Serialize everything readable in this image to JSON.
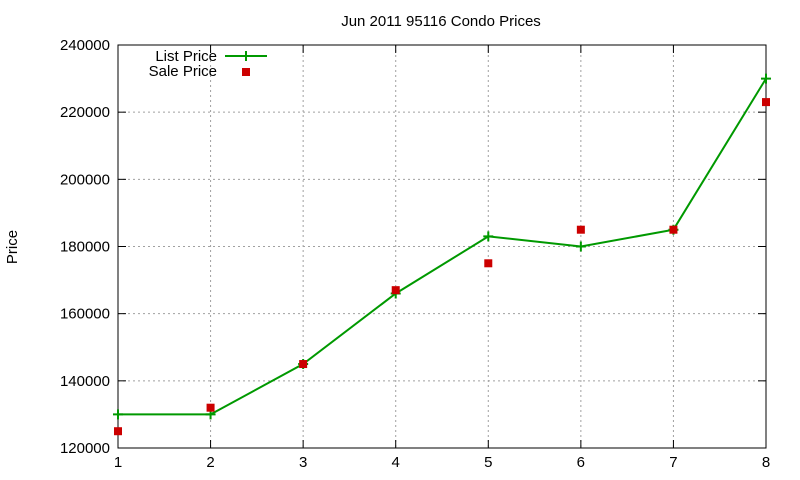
{
  "chart_data": {
    "type": "line",
    "title": "Jun 2011 95116 Condo Prices",
    "xlabel": "",
    "ylabel": "Price",
    "x": [
      1,
      2,
      3,
      4,
      5,
      6,
      7,
      8
    ],
    "xlim": [
      1,
      8
    ],
    "ylim": [
      120000,
      240000
    ],
    "xticks": [
      "1",
      "2",
      "3",
      "4",
      "5",
      "6",
      "7",
      "8"
    ],
    "yticks": [
      "120000",
      "140000",
      "160000",
      "180000",
      "200000",
      "220000",
      "240000"
    ],
    "grid": true,
    "legend_position": "top-left",
    "series": [
      {
        "name": "List Price",
        "style": "line-with-plus-markers",
        "color": "#009900",
        "values": [
          130000,
          130000,
          145000,
          166000,
          183000,
          180000,
          185000,
          230000
        ]
      },
      {
        "name": "Sale Price",
        "style": "square-points",
        "color": "#cc0000",
        "values": [
          125000,
          132000,
          145000,
          167000,
          175000,
          185000,
          185000,
          223000
        ]
      }
    ]
  }
}
